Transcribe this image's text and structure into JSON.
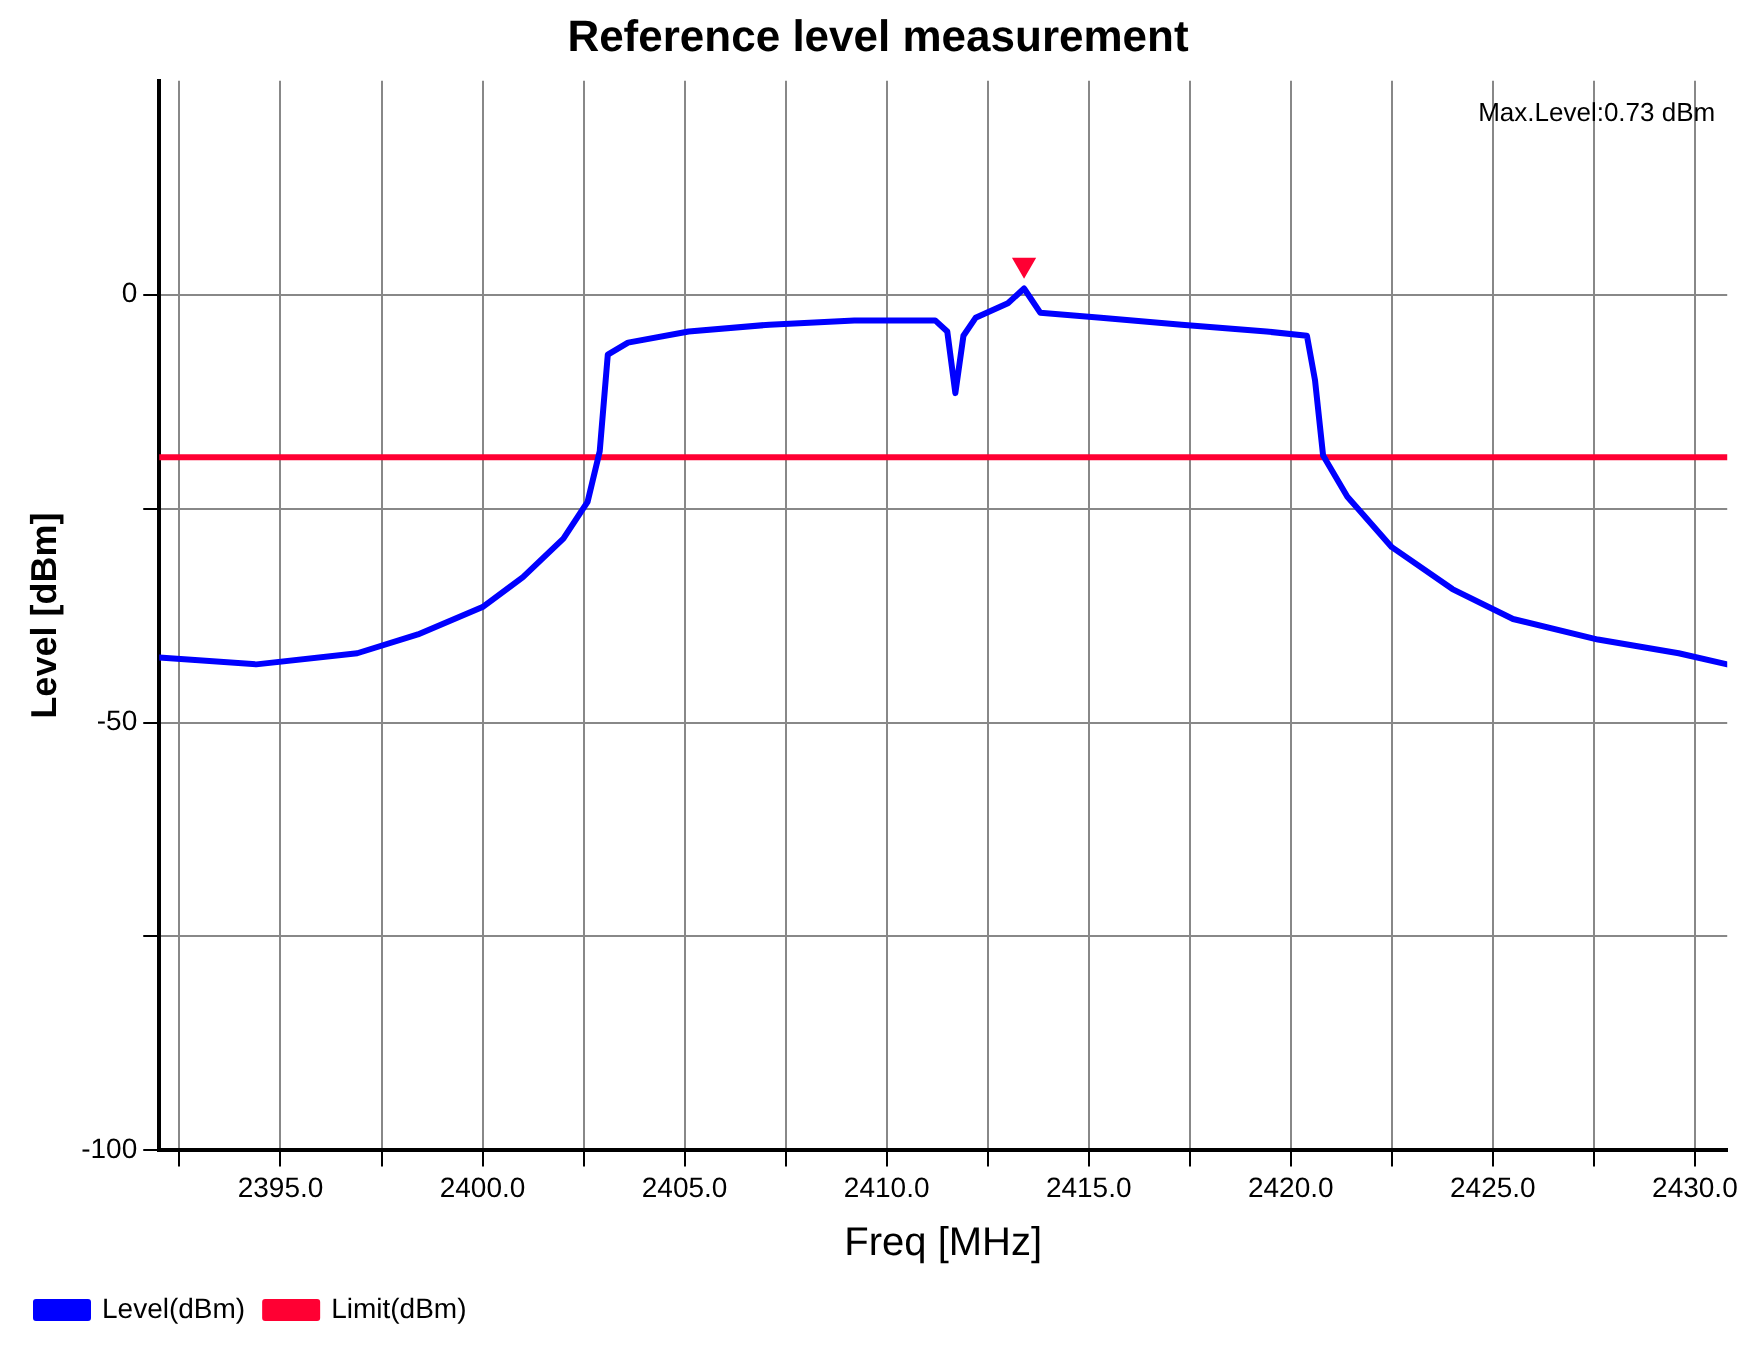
{
  "chart_data": {
    "type": "line",
    "title": "Reference level measurement",
    "xlabel": "Freq [MHz]",
    "ylabel": "Level [dBm]",
    "xlim": [
      2392,
      2430.8
    ],
    "ylim": [
      -100,
      25
    ],
    "xticks": [
      {
        "value": 2392.5,
        "label": null
      },
      {
        "value": 2395,
        "label": "2395.0"
      },
      {
        "value": 2397.5,
        "label": null
      },
      {
        "value": 2400,
        "label": "2400.0"
      },
      {
        "value": 2402.5,
        "label": null
      },
      {
        "value": 2405,
        "label": "2405.0"
      },
      {
        "value": 2407.5,
        "label": null
      },
      {
        "value": 2410,
        "label": "2410.0"
      },
      {
        "value": 2412.5,
        "label": null
      },
      {
        "value": 2415,
        "label": "2415.0"
      },
      {
        "value": 2417.5,
        "label": null
      },
      {
        "value": 2420,
        "label": "2420.0"
      },
      {
        "value": 2422.5,
        "label": null
      },
      {
        "value": 2425,
        "label": "2425.0"
      },
      {
        "value": 2427.5,
        "label": null
      },
      {
        "value": 2430,
        "label": "2430.0"
      }
    ],
    "yticks": [
      -100,
      {
        "value": -75,
        "label": null
      },
      -50,
      {
        "value": -25,
        "label": null
      },
      0
    ],
    "grid": true,
    "legend": "bottom left",
    "line_style": "solid",
    "marker": "none",
    "annotations": [
      "Max.Level:0.73 dBm"
    ],
    "series": [
      {
        "name": "Level(dBm)",
        "color": "#0000ff",
        "x": [
          2392,
          2394.4,
          2396.9,
          2398.4,
          2400,
          2401,
          2402,
          2402.6,
          2402.9,
          2403.1,
          2403.6,
          2405.1,
          2407.1,
          2409.2,
          2411.2,
          2411.5,
          2411.7,
          2411.9,
          2412.2,
          2413,
          2413.4,
          2413.8,
          2415.3,
          2417.3,
          2419.4,
          2420.4,
          2420.6,
          2420.8,
          2421.4,
          2422.5,
          2424,
          2425.5,
          2427.6,
          2429.6,
          2430.8
        ],
        "values": [
          -42.4,
          -43.2,
          -41.9,
          -39.7,
          -36.5,
          -33,
          -28.5,
          -24.2,
          -18.3,
          -7,
          -5.6,
          -4.3,
          -3.5,
          -3,
          -3,
          -4.3,
          -11.5,
          -4.8,
          -2.7,
          -1,
          0.73,
          -2.1,
          -2.7,
          -3.5,
          -4.3,
          -4.8,
          -10,
          -18.8,
          -23.6,
          -29.5,
          -34.4,
          -37.9,
          -40.3,
          -41.9,
          -43.2
        ]
      },
      {
        "name": "Limit(dBm)",
        "color": "#ff0033",
        "x": [
          2392,
          2430.8
        ],
        "values": [
          -19,
          -19
        ]
      },
      {
        "type": "scatter",
        "marker": "triangle",
        "color": "#ff0033",
        "x": [
          2413.4
        ],
        "values": [
          3.5
        ]
      }
    ]
  }
}
